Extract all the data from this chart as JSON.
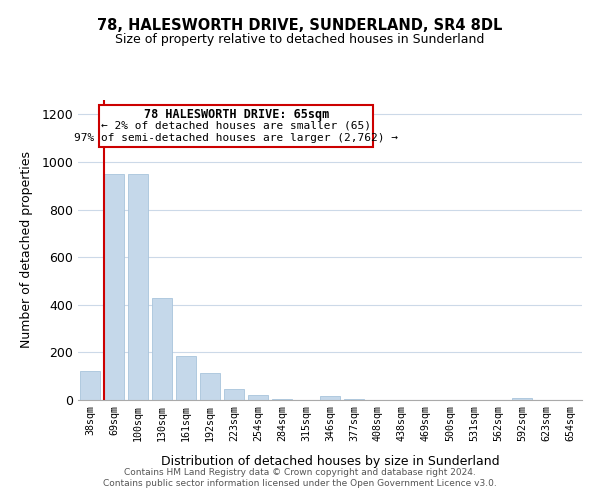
{
  "title": "78, HALESWORTH DRIVE, SUNDERLAND, SR4 8DL",
  "subtitle": "Size of property relative to detached houses in Sunderland",
  "xlabel": "Distribution of detached houses by size in Sunderland",
  "ylabel": "Number of detached properties",
  "bar_labels": [
    "38sqm",
    "69sqm",
    "100sqm",
    "130sqm",
    "161sqm",
    "192sqm",
    "223sqm",
    "254sqm",
    "284sqm",
    "315sqm",
    "346sqm",
    "377sqm",
    "408sqm",
    "438sqm",
    "469sqm",
    "500sqm",
    "531sqm",
    "562sqm",
    "592sqm",
    "623sqm",
    "654sqm"
  ],
  "bar_values": [
    120,
    950,
    950,
    430,
    185,
    115,
    47,
    20,
    5,
    0,
    18,
    5,
    0,
    0,
    0,
    0,
    0,
    0,
    7,
    0,
    0
  ],
  "bar_color": "#c5d8ea",
  "bar_edge_color": "#a8c4dc",
  "marker_line_color": "#cc0000",
  "marker_bar_index": 1,
  "ylim": [
    0,
    1260
  ],
  "annotation_title": "78 HALESWORTH DRIVE: 65sqm",
  "annotation_line1": "← 2% of detached houses are smaller (65)",
  "annotation_line2": "97% of semi-detached houses are larger (2,762) →",
  "footer_line1": "Contains HM Land Registry data © Crown copyright and database right 2024.",
  "footer_line2": "Contains public sector information licensed under the Open Government Licence v3.0.",
  "bg_color": "#ffffff",
  "grid_color": "#ccd9e8",
  "yticks": [
    0,
    200,
    400,
    600,
    800,
    1000,
    1200
  ]
}
